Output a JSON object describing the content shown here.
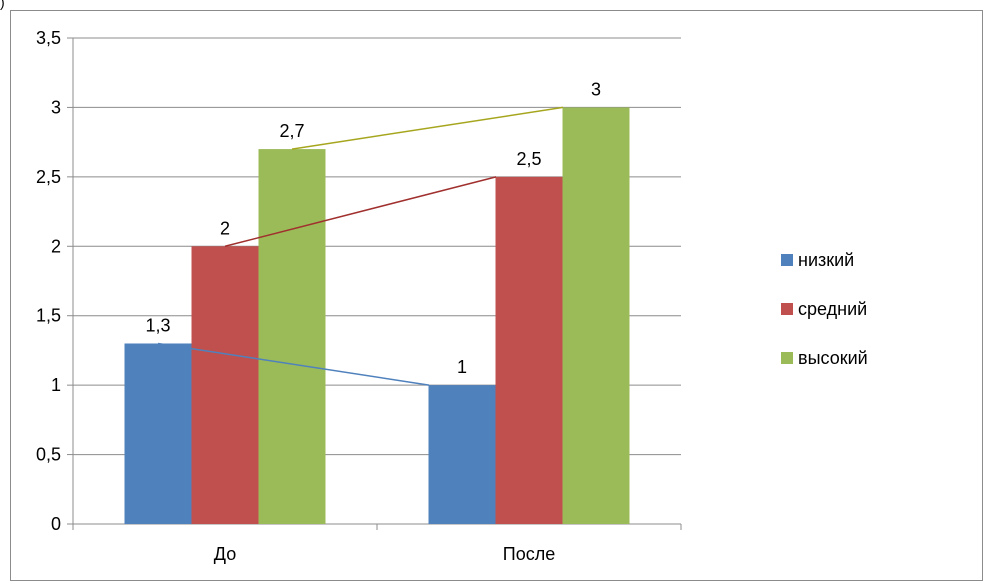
{
  "page_mark": ")",
  "chart_data": {
    "type": "bar",
    "categories": [
      "До",
      "После"
    ],
    "series": [
      {
        "name": "низкий",
        "values": [
          1.3,
          1
        ],
        "color": "#4f81bd",
        "trend_color": "#4f81bd"
      },
      {
        "name": "средний",
        "values": [
          2,
          2.5
        ],
        "color": "#c0504d",
        "trend_color": "#a0302e"
      },
      {
        "name": "высокий",
        "values": [
          2.7,
          3
        ],
        "color": "#9bbb59",
        "trend_color": "#a6a61e"
      }
    ],
    "y_ticks": [
      "0",
      "0,5",
      "1",
      "1,5",
      "2",
      "2,5",
      "3",
      "3,5"
    ],
    "ylim": [
      0,
      3.5
    ],
    "grid": true,
    "legend_position": "right",
    "title": "",
    "xlabel": "",
    "ylabel": ""
  }
}
